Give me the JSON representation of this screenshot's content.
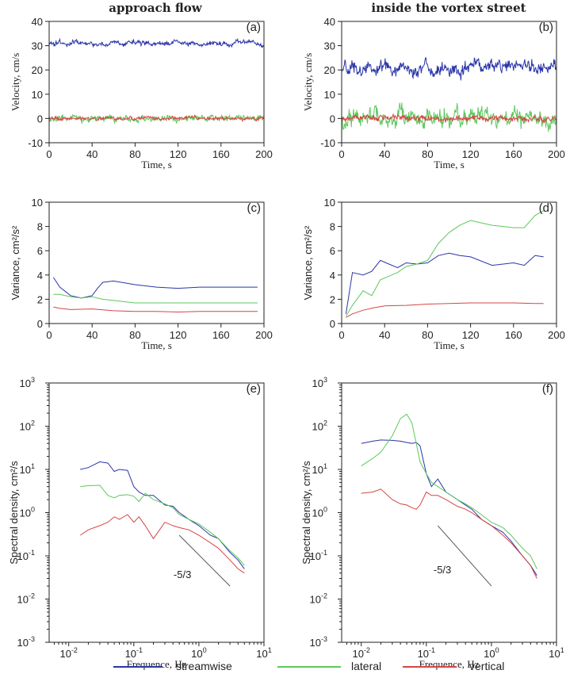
{
  "columns": {
    "left": "approach flow",
    "right": "inside the vortex street"
  },
  "colors": {
    "streamwise": "#2b35a8",
    "lateral": "#5cc85c",
    "vertical": "#d64545",
    "slope": "#555555"
  },
  "legend": [
    {
      "key": "streamwise",
      "label": "streamwise"
    },
    {
      "key": "lateral",
      "label": "lateral"
    },
    {
      "key": "vertical",
      "label": "vertical"
    }
  ],
  "chart_data": [
    {
      "panel": "(a)",
      "type": "line",
      "xlabel": "Time, s",
      "ylabel": "Velocity, cm/s",
      "xlim": [
        0,
        200
      ],
      "ylim": [
        -10,
        40
      ],
      "xticks": [
        0,
        40,
        80,
        120,
        160,
        200
      ],
      "yticks": [
        -10,
        0,
        10,
        20,
        30,
        40
      ],
      "series": [
        {
          "key": "streamwise",
          "mean": 31,
          "amp": 2.2
        },
        {
          "key": "lateral",
          "mean": 0,
          "amp": 2.5
        },
        {
          "key": "vertical",
          "mean": 0,
          "amp": 1.6
        }
      ]
    },
    {
      "panel": "(b)",
      "type": "line",
      "xlabel": "Time, s",
      "ylabel": "Velocity, cm/s",
      "xlim": [
        0,
        200
      ],
      "ylim": [
        -10,
        40
      ],
      "xticks": [
        0,
        40,
        80,
        120,
        160,
        200
      ],
      "yticks": [
        -10,
        0,
        10,
        20,
        30,
        40
      ],
      "series": [
        {
          "key": "streamwise",
          "mean": 21,
          "amp": 6
        },
        {
          "key": "lateral",
          "mean": 0,
          "amp": 8
        },
        {
          "key": "vertical",
          "mean": 0,
          "amp": 2.5
        }
      ]
    },
    {
      "panel": "(c)",
      "type": "line",
      "xlabel": "Time, s",
      "ylabel": "Variance, cm²/s²",
      "xlim": [
        0,
        200
      ],
      "ylim": [
        0,
        10
      ],
      "xticks": [
        0,
        40,
        80,
        120,
        160,
        200
      ],
      "yticks": [
        0,
        2,
        4,
        6,
        8,
        10
      ],
      "series": [
        {
          "key": "streamwise",
          "x": [
            4,
            10,
            20,
            30,
            40,
            45,
            50,
            60,
            80,
            100,
            120,
            140,
            160,
            180,
            194
          ],
          "y": [
            3.8,
            3.0,
            2.3,
            2.1,
            2.3,
            2.9,
            3.4,
            3.5,
            3.2,
            3.0,
            2.9,
            3.0,
            3.0,
            3.0,
            3.0
          ]
        },
        {
          "key": "lateral",
          "x": [
            4,
            10,
            20,
            30,
            40,
            50,
            60,
            70,
            80,
            100,
            120,
            140,
            160,
            180,
            194
          ],
          "y": [
            2.4,
            2.4,
            2.2,
            2.1,
            2.2,
            2.0,
            1.9,
            1.8,
            1.7,
            1.7,
            1.7,
            1.7,
            1.7,
            1.7,
            1.7
          ]
        },
        {
          "key": "vertical",
          "x": [
            4,
            10,
            20,
            40,
            60,
            80,
            100,
            120,
            140,
            160,
            180,
            194
          ],
          "y": [
            1.35,
            1.25,
            1.15,
            1.2,
            1.05,
            1.0,
            1.0,
            0.95,
            1.0,
            1.0,
            1.0,
            1.0
          ]
        }
      ]
    },
    {
      "panel": "(d)",
      "type": "line",
      "xlabel": "Time, s",
      "ylabel": "Variance, cm²/s²",
      "xlim": [
        0,
        200
      ],
      "ylim": [
        0,
        10
      ],
      "xticks": [
        0,
        40,
        80,
        120,
        160,
        200
      ],
      "yticks": [
        0,
        2,
        4,
        6,
        8,
        10
      ],
      "series": [
        {
          "key": "streamwise",
          "x": [
            4,
            10,
            20,
            28,
            36,
            44,
            52,
            60,
            70,
            80,
            90,
            100,
            110,
            120,
            140,
            160,
            170,
            180,
            188
          ],
          "y": [
            0.8,
            4.2,
            4.0,
            4.3,
            5.2,
            4.9,
            4.6,
            5.0,
            4.9,
            5.0,
            5.6,
            5.8,
            5.6,
            5.5,
            4.8,
            5.0,
            4.8,
            5.6,
            5.5
          ]
        },
        {
          "key": "lateral",
          "x": [
            4,
            10,
            20,
            28,
            36,
            44,
            52,
            60,
            70,
            80,
            90,
            100,
            110,
            120,
            140,
            160,
            170,
            180,
            188
          ],
          "y": [
            0.6,
            1.5,
            2.7,
            2.3,
            3.6,
            3.9,
            4.2,
            4.7,
            4.9,
            5.2,
            6.6,
            7.5,
            8.1,
            8.5,
            8.1,
            7.9,
            7.9,
            8.9,
            9.3
          ]
        },
        {
          "key": "vertical",
          "x": [
            4,
            10,
            20,
            30,
            40,
            60,
            80,
            100,
            120,
            140,
            160,
            180,
            188
          ],
          "y": [
            0.5,
            0.8,
            1.1,
            1.3,
            1.45,
            1.5,
            1.6,
            1.65,
            1.7,
            1.7,
            1.7,
            1.65,
            1.65
          ]
        }
      ]
    },
    {
      "panel": "(e)",
      "type": "line",
      "xscale": "log",
      "yscale": "log",
      "xlabel": "Frequence, Hz",
      "ylabel": "Spectral density, cm²/s",
      "xlim": [
        0.005,
        10
      ],
      "ylim": [
        0.001,
        1000
      ],
      "xticks": [
        "10^-2",
        "10^-1",
        "10^0",
        "10^1"
      ],
      "yticks": [
        "10^-3",
        "10^-2",
        "10^-1",
        "10^0",
        "10^1",
        "10^2",
        "10^3"
      ],
      "annotation": "-5/3",
      "slope_line": {
        "x": [
          0.5,
          3
        ],
        "y": [
          0.3,
          0.02
        ]
      },
      "series": [
        {
          "key": "streamwise",
          "x": [
            0.015,
            0.02,
            0.03,
            0.04,
            0.05,
            0.06,
            0.08,
            0.1,
            0.12,
            0.15,
            0.2,
            0.3,
            0.4,
            0.5,
            0.7,
            1,
            1.5,
            2,
            3,
            4,
            5
          ],
          "y": [
            10,
            11,
            15,
            14,
            9,
            10,
            9.5,
            4,
            3,
            2.5,
            2.5,
            1.5,
            1.4,
            1,
            0.7,
            0.5,
            0.3,
            0.25,
            0.12,
            0.08,
            0.05
          ]
        },
        {
          "key": "lateral",
          "x": [
            0.015,
            0.02,
            0.03,
            0.04,
            0.05,
            0.06,
            0.08,
            0.1,
            0.12,
            0.15,
            0.2,
            0.3,
            0.4,
            0.5,
            0.7,
            1,
            1.5,
            2,
            3,
            4,
            5
          ],
          "y": [
            4,
            4.2,
            4.3,
            2.5,
            2.2,
            2.5,
            2.6,
            2.4,
            1.8,
            2.8,
            2.0,
            1.6,
            1.3,
            0.9,
            0.7,
            0.55,
            0.35,
            0.25,
            0.13,
            0.09,
            0.06
          ]
        },
        {
          "key": "vertical",
          "x": [
            0.015,
            0.02,
            0.03,
            0.04,
            0.05,
            0.06,
            0.08,
            0.1,
            0.12,
            0.15,
            0.2,
            0.3,
            0.4,
            0.5,
            0.7,
            1,
            1.5,
            2,
            3,
            4,
            5
          ],
          "y": [
            0.3,
            0.4,
            0.5,
            0.6,
            0.8,
            0.7,
            0.9,
            0.6,
            0.8,
            0.5,
            0.25,
            0.6,
            0.5,
            0.45,
            0.4,
            0.3,
            0.2,
            0.15,
            0.08,
            0.05,
            0.04
          ]
        }
      ]
    },
    {
      "panel": "(f)",
      "type": "line",
      "xscale": "log",
      "yscale": "log",
      "xlabel": "Frequence, Hz",
      "ylabel": "Spectral density, cm²/s",
      "xlim": [
        0.005,
        10
      ],
      "ylim": [
        0.001,
        1000
      ],
      "xticks": [
        "10^-2",
        "10^-1",
        "10^0",
        "10^1"
      ],
      "yticks": [
        "10^-3",
        "10^-2",
        "10^-1",
        "10^0",
        "10^1",
        "10^2",
        "10^3"
      ],
      "annotation": "-5/3",
      "slope_line": {
        "x": [
          0.15,
          1
        ],
        "y": [
          0.5,
          0.02
        ]
      },
      "series": [
        {
          "key": "streamwise",
          "x": [
            0.01,
            0.015,
            0.02,
            0.03,
            0.04,
            0.05,
            0.06,
            0.07,
            0.08,
            0.1,
            0.12,
            0.15,
            0.2,
            0.3,
            0.4,
            0.5,
            0.7,
            1,
            1.5,
            2,
            3,
            4,
            5
          ],
          "y": [
            40,
            45,
            48,
            47,
            45,
            42,
            40,
            42,
            35,
            8,
            4,
            6,
            3,
            2,
            1.5,
            1.2,
            0.7,
            0.5,
            0.35,
            0.22,
            0.1,
            0.06,
            0.035
          ]
        },
        {
          "key": "lateral",
          "x": [
            0.01,
            0.015,
            0.02,
            0.03,
            0.04,
            0.05,
            0.06,
            0.07,
            0.08,
            0.1,
            0.12,
            0.15,
            0.2,
            0.3,
            0.4,
            0.5,
            0.7,
            1,
            1.5,
            2,
            3,
            4,
            5
          ],
          "y": [
            12,
            18,
            25,
            60,
            150,
            190,
            120,
            40,
            15,
            8,
            5,
            4,
            3,
            2,
            1.6,
            1.3,
            0.9,
            0.6,
            0.45,
            0.3,
            0.15,
            0.1,
            0.05
          ]
        },
        {
          "key": "vertical",
          "x": [
            0.01,
            0.015,
            0.02,
            0.03,
            0.04,
            0.05,
            0.06,
            0.07,
            0.08,
            0.1,
            0.12,
            0.15,
            0.2,
            0.3,
            0.4,
            0.5,
            0.7,
            1,
            1.5,
            2,
            3,
            4,
            5
          ],
          "y": [
            2.8,
            3,
            3.5,
            2,
            1.6,
            1.5,
            1.3,
            1.2,
            1.5,
            3,
            2.5,
            2.5,
            2,
            1.4,
            1.2,
            1,
            0.7,
            0.5,
            0.3,
            0.2,
            0.1,
            0.06,
            0.03
          ]
        }
      ]
    }
  ]
}
